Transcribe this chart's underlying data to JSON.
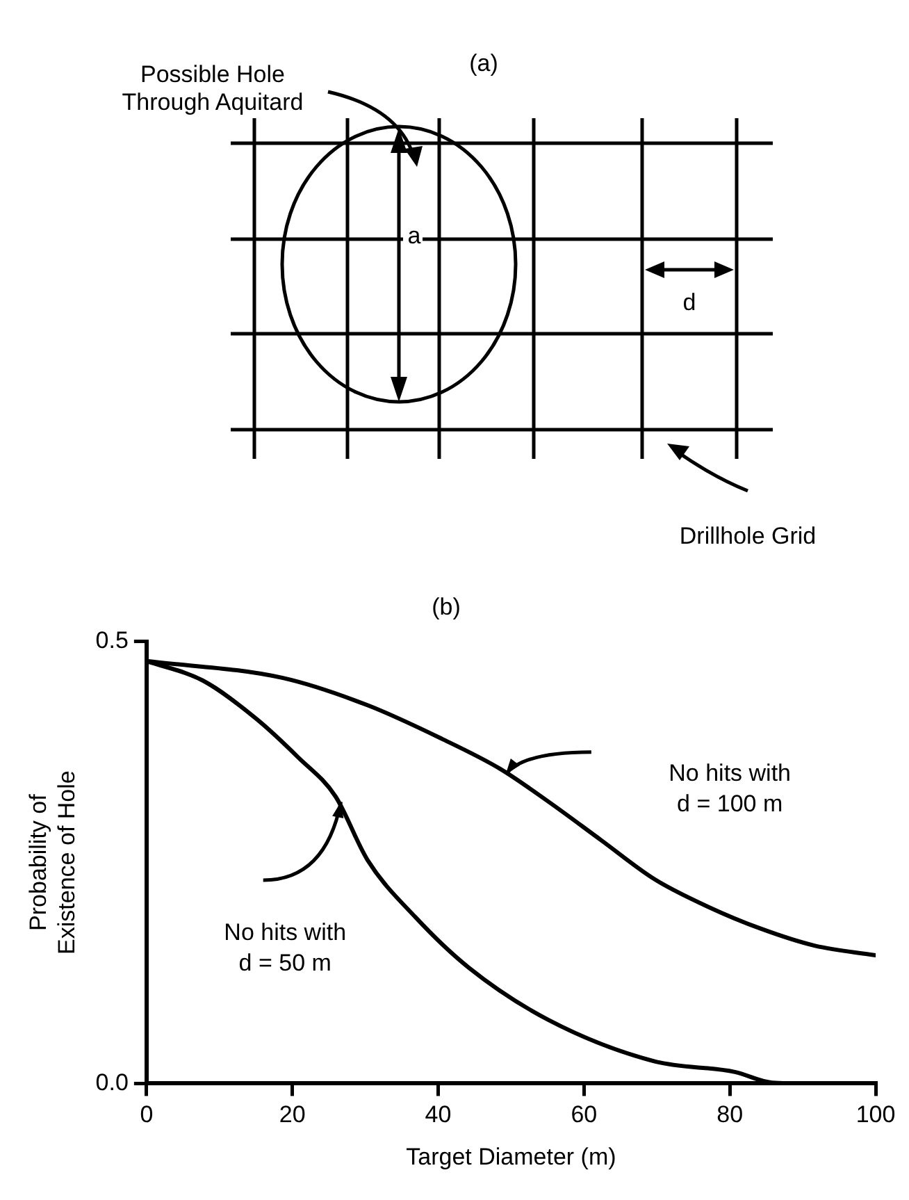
{
  "chart_data": {
    "type": "line",
    "title": "(b)",
    "xlabel": "Target Diameter (m)",
    "ylabel": "Probability of Existence of Hole",
    "xlim": [
      0,
      100
    ],
    "ylim": [
      0,
      0.5
    ],
    "xticks": [
      0,
      20,
      40,
      60,
      80,
      100
    ],
    "yticks": [
      {
        "value": 0,
        "label": "0.0"
      },
      {
        "value": 0.5,
        "label": "0.5"
      }
    ],
    "legend": false,
    "marker": "none",
    "line_style": "solid",
    "series": [
      {
        "name": "No hits with d = 100 m",
        "color": "#000000",
        "x": [
          0,
          18.6,
          30.3,
          40.5,
          48.5,
          55.1,
          62.4,
          69.7,
          77,
          84.3,
          91.6,
          100
        ],
        "values": [
          0.478,
          0.459,
          0.428,
          0.39,
          0.356,
          0.319,
          0.275,
          0.231,
          0.2,
          0.175,
          0.156,
          0.145
        ]
      },
      {
        "name": "No hits with d = 50 m",
        "color": "#000000",
        "x": [
          0,
          7.7,
          15,
          20.8,
          25.9,
          30.3,
          36.9,
          44.2,
          55.1,
          69.7,
          80.7,
          85.8,
          92
        ],
        "values": [
          0.478,
          0.456,
          0.413,
          0.369,
          0.325,
          0.253,
          0.188,
          0.131,
          0.072,
          0.025,
          0.013,
          0.001,
          0
        ]
      }
    ],
    "annotations": [
      "(a)",
      "Possible Hole Through Aquitard",
      "a",
      "d",
      "Drillhole Grid"
    ]
  }
}
